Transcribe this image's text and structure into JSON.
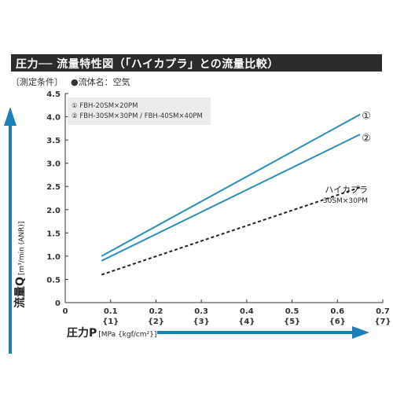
{
  "title": "圧力── 流量特性図（「ハイカプラ」との流量比較）",
  "conditions_label": "〔測定条件〕",
  "fluid_label": "●流体名：空気",
  "legend": [
    "① FBH-20SM×20PM",
    "② FBH-30SM×30PM / FBH-40SM×40PM"
  ],
  "colors": {
    "title_bg": "#2b2b2b",
    "series_blue": "#2a8fb8",
    "series_black": "#222222",
    "arrow": "#1c7fb5",
    "legend_bg": "#ececec"
  },
  "chart_data": {
    "type": "line",
    "xlabel_main": "圧力P",
    "xlabel_unit": "[MPa {kgf/cm²}]",
    "ylabel_main": "流量Q",
    "ylabel_unit": "[m³/min (ANR)]",
    "xlim": [
      0,
      0.7
    ],
    "ylim": [
      0,
      4.5
    ],
    "x_ticks": [
      "0",
      "0.1",
      "0.2",
      "0.3",
      "0.4",
      "0.5",
      "0.6",
      "0.7"
    ],
    "x_ticks_kgf": [
      "{1}",
      "{2}",
      "{3}",
      "{4}",
      "{5}",
      "{6}",
      "{7}"
    ],
    "y_ticks": [
      "0",
      "0.5",
      "1.0",
      "1.5",
      "2.0",
      "2.5",
      "3.0",
      "3.5",
      "4.0",
      "4.5"
    ],
    "grid": false,
    "series": [
      {
        "name": "①",
        "style": "solid",
        "color": "#2a8fb8",
        "x": [
          0.08,
          0.65
        ],
        "y": [
          1.0,
          4.05
        ]
      },
      {
        "name": "②",
        "style": "solid",
        "color": "#2a8fb8",
        "x": [
          0.08,
          0.65
        ],
        "y": [
          0.9,
          3.62
        ]
      },
      {
        "name": "ハイカプラ",
        "sublabel": "30SM×30PM",
        "style": "dashed",
        "color": "#222222",
        "x": [
          0.08,
          0.65
        ],
        "y": [
          0.6,
          2.48
        ]
      }
    ]
  }
}
